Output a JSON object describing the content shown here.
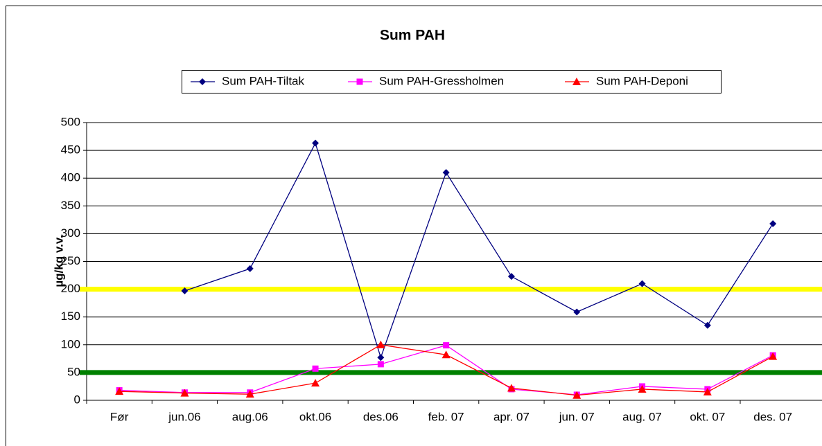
{
  "chart_data": {
    "type": "line",
    "title": "Sum PAH",
    "y_label": "µg/kg v.v.",
    "categories": [
      "Før",
      "jun.06",
      "aug.06",
      "okt.06",
      "des.06",
      "feb. 07",
      "apr. 07",
      "jun. 07",
      "aug. 07",
      "okt. 07",
      "des. 07"
    ],
    "series": [
      {
        "name": "Sum PAH-Tiltak",
        "color": "#000080",
        "marker": "diamond",
        "values": [
          null,
          197,
          237,
          463,
          77,
          410,
          223,
          159,
          210,
          135,
          318
        ]
      },
      {
        "name": "Sum PAH-Gressholmen",
        "color": "#ff00ff",
        "marker": "square",
        "values": [
          18,
          14,
          14,
          57,
          65,
          99,
          20,
          10,
          25,
          20,
          81
        ]
      },
      {
        "name": "Sum PAH-Deponi",
        "color": "#ff0000",
        "marker": "triangle",
        "values": [
          16,
          13,
          11,
          31,
          100,
          82,
          22,
          9,
          20,
          15,
          79
        ]
      }
    ],
    "reference_lines": [
      {
        "value": 200,
        "color": "#ffff00"
      },
      {
        "value": 50,
        "color": "#008000"
      }
    ],
    "ylim": [
      0,
      500
    ],
    "yticks": [
      0,
      50,
      100,
      150,
      200,
      250,
      300,
      350,
      400,
      450,
      500
    ],
    "grid": true,
    "legend": "top"
  }
}
